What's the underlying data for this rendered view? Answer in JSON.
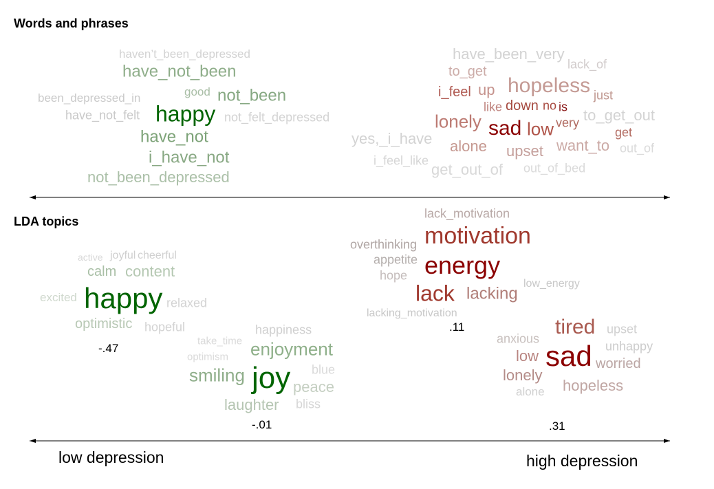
{
  "sections": {
    "words_and_phrases": {
      "title": "Words and phrases",
      "clusters": [
        {
          "words": [
            {
              "text": "haven’t_been_depressed",
              "color": "#d3d3d3"
            },
            {
              "text": "have_not_been",
              "color": "#8fae8a"
            },
            {
              "text": "not_been",
              "color": "#86a882"
            },
            {
              "text": "been_depressed_in",
              "color": "#cacaca"
            },
            {
              "text": "good",
              "color": "#a9bea6"
            },
            {
              "text": "have_not_felt",
              "color": "#c9c9c9"
            },
            {
              "text": "happy",
              "color": "#006400"
            },
            {
              "text": "not_felt_depressed",
              "color": "#d3d3d3"
            },
            {
              "text": "have_not",
              "color": "#7da378"
            },
            {
              "text": "i_have_not",
              "color": "#88a883"
            },
            {
              "text": "not_been_depressed",
              "color": "#abc0a8"
            }
          ]
        },
        {
          "words": [
            {
              "text": "have_been_very",
              "color": "#d3d3d3"
            },
            {
              "text": "to_get",
              "color": "#ccaca8"
            },
            {
              "text": "lack_of",
              "color": "#d2cccc"
            },
            {
              "text": "hopeless",
              "color": "#c49a94"
            },
            {
              "text": "i_feel",
              "color": "#b05a52"
            },
            {
              "text": "up",
              "color": "#c5928c"
            },
            {
              "text": "down",
              "color": "#a64a40"
            },
            {
              "text": "like",
              "color": "#c08580"
            },
            {
              "text": "no",
              "color": "#a84a40"
            },
            {
              "text": "is",
              "color": "#8b1a1a"
            },
            {
              "text": "very",
              "color": "#b06a60"
            },
            {
              "text": "just",
              "color": "#c09890"
            },
            {
              "text": "to_get_out",
              "color": "#d3d3d3"
            },
            {
              "text": "lonely",
              "color": "#bc7a72"
            },
            {
              "text": "get",
              "color": "#b46e64"
            },
            {
              "text": "sad",
              "color": "#8b0000"
            },
            {
              "text": "low",
              "color": "#b0554a"
            },
            {
              "text": "out_of",
              "color": "#dadada"
            },
            {
              "text": "yes,_i_have",
              "color": "#d3d3d3"
            },
            {
              "text": "alone",
              "color": "#c59890"
            },
            {
              "text": "want_to",
              "color": "#cbaaa6"
            },
            {
              "text": "upset",
              "color": "#c5a09c"
            },
            {
              "text": "i_feel_like",
              "color": "#d6d6d6"
            },
            {
              "text": "get_out_of",
              "color": "#d8d8d8"
            },
            {
              "text": "out_of_bed",
              "color": "#dadada"
            }
          ]
        }
      ]
    },
    "lda_topics": {
      "title": "LDA topics",
      "clusters": [
        {
          "score": "-.47",
          "words": [
            {
              "text": "active",
              "color": "#d8d8d8"
            },
            {
              "text": "joyful",
              "color": "#cfcfcf"
            },
            {
              "text": "cheerful",
              "color": "#d0d0d0"
            },
            {
              "text": "calm",
              "color": "#a9bfa6"
            },
            {
              "text": "content",
              "color": "#b5c8b2"
            },
            {
              "text": "excited",
              "color": "#cfd8cd"
            },
            {
              "text": "happy",
              "color": "#006400"
            },
            {
              "text": "relaxed",
              "color": "#d3d3d3"
            },
            {
              "text": "optimistic",
              "color": "#b8c8b5"
            },
            {
              "text": "hopeful",
              "color": "#d3d3d3"
            }
          ]
        },
        {
          "score": "-.01",
          "words": [
            {
              "text": "take_time",
              "color": "#dadada"
            },
            {
              "text": "happiness",
              "color": "#d0d0d0"
            },
            {
              "text": "optimism",
              "color": "#dadada"
            },
            {
              "text": "enjoyment",
              "color": "#8fb08a"
            },
            {
              "text": "smiling",
              "color": "#8fae8a"
            },
            {
              "text": "joy",
              "color": "#006400"
            },
            {
              "text": "blue",
              "color": "#dadada"
            },
            {
              "text": "peace",
              "color": "#c5cfc2"
            },
            {
              "text": "laughter",
              "color": "#b5c5b2"
            },
            {
              "text": "bliss",
              "color": "#d6d6d6"
            }
          ]
        },
        {
          "score": ".11",
          "words": [
            {
              "text": "lack_motivation",
              "color": "#b8a8a6"
            },
            {
              "text": "overthinking",
              "color": "#b0a6a4"
            },
            {
              "text": "motivation",
              "color": "#a0392e"
            },
            {
              "text": "appetite",
              "color": "#b4aeac"
            },
            {
              "text": "energy",
              "color": "#8b0000"
            },
            {
              "text": "hope",
              "color": "#c4bcbb"
            },
            {
              "text": "lack",
              "color": "#a0392e"
            },
            {
              "text": "lacking",
              "color": "#b07e78"
            },
            {
              "text": "low_energy",
              "color": "#c8c8c8"
            },
            {
              "text": "lacking_motivation",
              "color": "#c8c8c8"
            }
          ]
        },
        {
          "score": ".31",
          "words": [
            {
              "text": "anxious",
              "color": "#c8c0be"
            },
            {
              "text": "tired",
              "color": "#a95a50"
            },
            {
              "text": "upset",
              "color": "#d0d0d0"
            },
            {
              "text": "unhappy",
              "color": "#cccccc"
            },
            {
              "text": "low",
              "color": "#b88480"
            },
            {
              "text": "sad",
              "color": "#8b0000"
            },
            {
              "text": "worried",
              "color": "#bba6a4"
            },
            {
              "text": "lonely",
              "color": "#b48c88"
            },
            {
              "text": "alone",
              "color": "#d0d0d0"
            },
            {
              "text": "hopeless",
              "color": "#c0a6a3"
            }
          ]
        }
      ]
    }
  },
  "axis": {
    "low_label": "low depression",
    "high_label": "high depression"
  }
}
